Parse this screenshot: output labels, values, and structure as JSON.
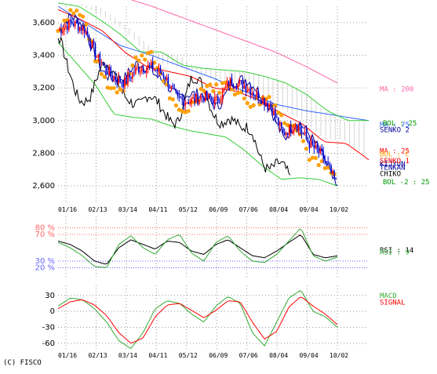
{
  "copyright": "(C) FISCO",
  "colors": {
    "candle": "#0000cc",
    "candle_up": "#ff0000",
    "ichimoku_dots": "#ffa000",
    "bollinger": "#33cc33",
    "ma200": "#ff66aa",
    "ma75": "#3366ff",
    "kijyun": "#ff0000",
    "tenkan": "#000099",
    "chiko": "#000000",
    "senko1": "#ff0000",
    "senko2": "#009900",
    "cloud": "#aaaaaa",
    "rsi1": "#000000",
    "rsi2": "#33aa33",
    "macd": "#33aa33",
    "signal": "#ff0000",
    "ref_red": "#ff6666",
    "ref_blue": "#6666ff",
    "grid": "#999999"
  },
  "chart_data": [
    {
      "type": "candlestick",
      "panel": "price",
      "ylim": [
        2500,
        3700
      ],
      "yticks": [
        2600,
        2800,
        3000,
        3200,
        3400,
        3600
      ],
      "ytick_labels": [
        "2,600",
        "2,800",
        "3,000",
        "3,200",
        "3,400",
        "3,600"
      ],
      "xtick_labels": [
        "01/16",
        "02/13",
        "03/14",
        "04/11",
        "05/12",
        "06/09",
        "07/06",
        "08/04",
        "09/04",
        "10/02"
      ],
      "grid": true,
      "close_anchors": [
        3550,
        3600,
        3560,
        3380,
        3280,
        3230,
        3320,
        3330,
        3280,
        3130,
        3120,
        3150,
        3120,
        3240,
        3220,
        3160,
        3100,
        2920,
        2980,
        2860,
        2780,
        2620
      ],
      "series_labels": {
        "ma200": "MA : 200",
        "ma75": "MA : 75",
        "senko2": "SENKO 2",
        "bol_up": "BOL : 25",
        "ma25": "MA : 25",
        "bol_c": "BOL : C",
        "kijyun": "KIJYUN",
        "senko1": "SENKO 1",
        "tenkan": "TENKAN",
        "chiko": "CHIKO",
        "bol_dn": "BOL -2 : 25"
      },
      "ma200": [
        3760,
        3700,
        3630,
        3560,
        3490,
        3420,
        3330,
        3230
      ],
      "ma75": [
        3700,
        3580,
        3460,
        3400,
        3330,
        3260,
        3180,
        3100,
        3060,
        3030,
        3000
      ],
      "kijyun": [
        3680,
        3620,
        3550,
        3420,
        3330,
        3300,
        3270,
        3200,
        3180,
        3130,
        3050,
        2980,
        2870,
        2860,
        2760
      ],
      "bollinger_upper": [
        3720,
        3700,
        3620,
        3530,
        3420,
        3420,
        3340,
        3320,
        3310,
        3300,
        3270,
        3230,
        3160,
        3060,
        3000,
        3000
      ],
      "bollinger_lower": [
        3480,
        3350,
        3220,
        3040,
        3020,
        3010,
        2970,
        2940,
        2920,
        2900,
        2820,
        2720,
        2640,
        2650,
        2640,
        2600
      ]
    },
    {
      "type": "line",
      "panel": "rsi",
      "ylim": [
        10,
        90
      ],
      "yticks": [
        20,
        30,
        70,
        80
      ],
      "ytick_labels": [
        "20 %",
        "30 %",
        "70 %",
        "80 %"
      ],
      "series": [
        {
          "name": "RSI : 14"
        },
        {
          "name": "RSI : 9"
        }
      ],
      "rsi_a": [
        60,
        55,
        45,
        30,
        25,
        50,
        62,
        55,
        48,
        60,
        58,
        45,
        40,
        55,
        62,
        50,
        38,
        35,
        45,
        58,
        70,
        40,
        35,
        38
      ],
      "rsi_b": [
        58,
        50,
        38,
        22,
        20,
        55,
        68,
        50,
        40,
        62,
        70,
        42,
        30,
        58,
        68,
        45,
        30,
        28,
        40,
        60,
        80,
        38,
        30,
        36
      ]
    },
    {
      "type": "line",
      "panel": "macd",
      "ylim": [
        -75,
        40
      ],
      "yticks": [
        -60,
        -30,
        0,
        30
      ],
      "ytick_labels": [
        "-60",
        "-30",
        "0",
        "30"
      ],
      "series": [
        {
          "name": "MACD"
        },
        {
          "name": "SIGNAL"
        }
      ],
      "macd": [
        10,
        25,
        22,
        5,
        -20,
        -55,
        -70,
        -40,
        5,
        20,
        15,
        -5,
        -20,
        10,
        28,
        15,
        -40,
        -65,
        -20,
        25,
        40,
        0,
        -10,
        -30
      ],
      "signal": [
        5,
        18,
        22,
        12,
        -8,
        -40,
        -60,
        -50,
        -10,
        12,
        15,
        2,
        -12,
        2,
        20,
        18,
        -20,
        -52,
        -38,
        8,
        28,
        10,
        -5,
        -25
      ]
    }
  ]
}
